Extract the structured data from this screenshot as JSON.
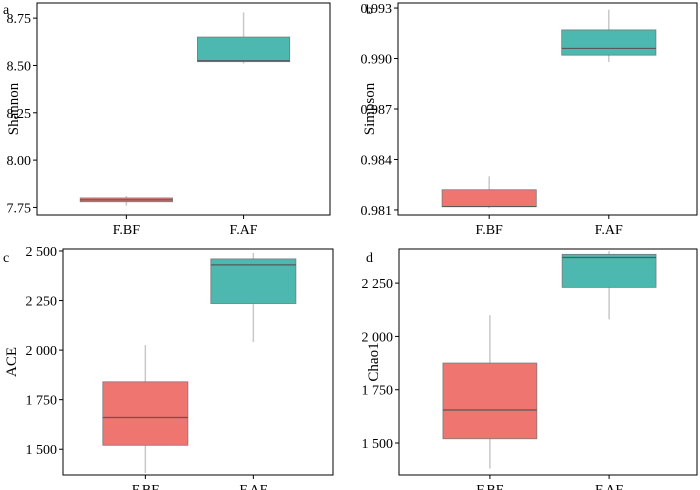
{
  "colors": {
    "f_bf": "#EE7570",
    "f_af": "#4DB8B0",
    "whisker": "#c8c8c8",
    "median": "#595959",
    "frame": "#000000"
  },
  "chart_data": [
    {
      "panel": "a",
      "type": "box",
      "ylabel": "Shannon",
      "ylim": [
        7.71,
        8.83
      ],
      "yticks": [
        7.75,
        8.0,
        8.25,
        8.5,
        8.75
      ],
      "ytick_labels": [
        "7.75",
        "8.00",
        "8.25",
        "8.50",
        "8.75"
      ],
      "categories": [
        "F.BF",
        "F.AF"
      ],
      "boxes": [
        {
          "name": "F.BF",
          "min": 7.76,
          "q1": 7.78,
          "median": 7.79,
          "q3": 7.8,
          "max": 7.81,
          "color": "#EE7570"
        },
        {
          "name": "F.AF",
          "min": 8.51,
          "q1": 8.52,
          "median": 8.525,
          "q3": 8.65,
          "max": 8.78,
          "color": "#4DB8B0"
        }
      ]
    },
    {
      "panel": "b",
      "type": "box",
      "ylabel": "Simpson",
      "ylim": [
        0.9807,
        0.9933
      ],
      "yticks": [
        0.981,
        0.984,
        0.987,
        0.99,
        0.993
      ],
      "ytick_labels": [
        "0.981",
        "0.984",
        "0.987",
        "0.990",
        "0.993"
      ],
      "categories": [
        "F.BF",
        "F.AF"
      ],
      "boxes": [
        {
          "name": "F.BF",
          "min": 0.9811,
          "q1": 0.9812,
          "median": 0.9812,
          "q3": 0.9822,
          "max": 0.983,
          "color": "#EE7570"
        },
        {
          "name": "F.AF",
          "min": 0.9898,
          "q1": 0.9902,
          "median": 0.9906,
          "q3": 0.9917,
          "max": 0.9929,
          "color": "#4DB8B0"
        }
      ]
    },
    {
      "panel": "c",
      "type": "box",
      "ylabel": "ACE",
      "ylim": [
        1370,
        2510
      ],
      "yticks": [
        1500,
        1750,
        2000,
        2250,
        2500
      ],
      "ytick_labels": [
        "1 500",
        "1 750",
        "2 000",
        "2 250",
        "2 500"
      ],
      "categories": [
        "F.BF",
        "F.AF"
      ],
      "boxes": [
        {
          "name": "F.BF",
          "min": 1380,
          "q1": 1520,
          "median": 1660,
          "q3": 1840,
          "max": 2025,
          "color": "#EE7570"
        },
        {
          "name": "F.AF",
          "min": 2040,
          "q1": 2235,
          "median": 2430,
          "q3": 2460,
          "max": 2490,
          "color": "#4DB8B0"
        }
      ]
    },
    {
      "panel": "d",
      "type": "box",
      "ylabel": "Chao1",
      "ylim": [
        1350,
        2410
      ],
      "yticks": [
        1500,
        1750,
        2000,
        2250
      ],
      "ytick_labels": [
        "1 500",
        "1 750",
        "2 000",
        "2 250"
      ],
      "categories": [
        "F.BF",
        "F.AF"
      ],
      "boxes": [
        {
          "name": "F.BF",
          "min": 1380,
          "q1": 1520,
          "median": 1655,
          "q3": 1875,
          "max": 2100,
          "color": "#EE7570"
        },
        {
          "name": "F.AF",
          "min": 2080,
          "q1": 2230,
          "median": 2370,
          "q3": 2385,
          "max": 2400,
          "color": "#4DB8B0"
        }
      ]
    }
  ]
}
